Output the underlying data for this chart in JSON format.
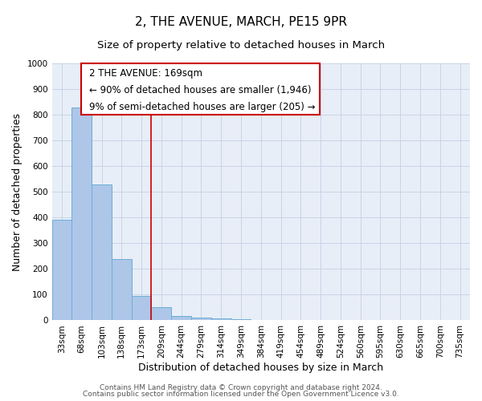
{
  "title": "2, THE AVENUE, MARCH, PE15 9PR",
  "subtitle": "Size of property relative to detached houses in March",
  "xlabel": "Distribution of detached houses by size in March",
  "ylabel": "Number of detached properties",
  "bar_labels": [
    "33sqm",
    "68sqm",
    "103sqm",
    "138sqm",
    "173sqm",
    "209sqm",
    "244sqm",
    "279sqm",
    "314sqm",
    "349sqm",
    "384sqm",
    "419sqm",
    "454sqm",
    "489sqm",
    "524sqm",
    "560sqm",
    "595sqm",
    "630sqm",
    "665sqm",
    "700sqm",
    "735sqm"
  ],
  "bar_values": [
    390,
    828,
    530,
    240,
    96,
    50,
    18,
    12,
    7,
    4,
    0,
    0,
    0,
    0,
    0,
    0,
    0,
    0,
    0,
    0,
    0
  ],
  "bar_color": "#aec6e8",
  "bar_edge_color": "#6baed6",
  "vline_x_idx": 4,
  "vline_color": "#cc0000",
  "ylim": [
    0,
    1000
  ],
  "yticks": [
    0,
    100,
    200,
    300,
    400,
    500,
    600,
    700,
    800,
    900,
    1000
  ],
  "grid_color": "#c8d4e8",
  "bg_color": "#e8eef7",
  "annotation_title": "2 THE AVENUE: 169sqm",
  "annotation_line1": "← 90% of detached houses are smaller (1,946)",
  "annotation_line2": "9% of semi-detached houses are larger (205) →",
  "annotation_box_color": "#cc0000",
  "footer_line1": "Contains HM Land Registry data © Crown copyright and database right 2024.",
  "footer_line2": "Contains public sector information licensed under the Open Government Licence v3.0.",
  "title_fontsize": 11,
  "subtitle_fontsize": 9.5,
  "axis_label_fontsize": 9,
  "tick_fontsize": 7.5,
  "annotation_fontsize": 8.5,
  "footer_fontsize": 6.5
}
